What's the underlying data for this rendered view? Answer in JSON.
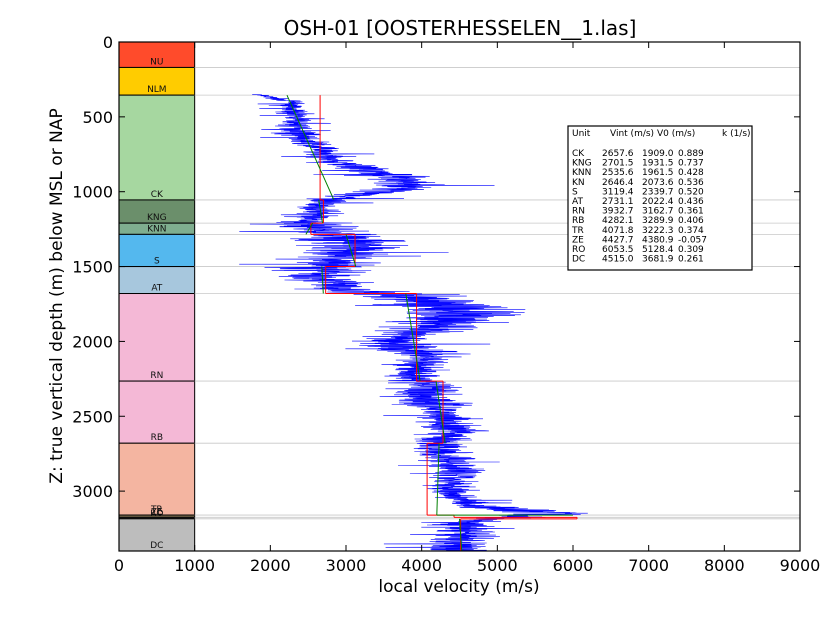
{
  "chart_data": {
    "type": "line",
    "title": "OSH-01 [OOSTERHESSELEN__1.las]",
    "xlabel": "local velocity (m/s)",
    "ylabel": "Z: true vertical depth (m) below MSL or NAP",
    "xlim": [
      0,
      9000
    ],
    "ylim": [
      3400,
      0
    ],
    "y_inverted": true,
    "xticks": [
      0,
      1000,
      2000,
      3000,
      4000,
      5000,
      6000,
      7000,
      8000,
      9000
    ],
    "yticks": [
      0,
      500,
      1000,
      1500,
      2000,
      2500,
      3000
    ],
    "units": [
      {
        "name": "NU",
        "top": 0,
        "base": 170,
        "color": "#ff4b2b"
      },
      {
        "name": "NLM",
        "top": 170,
        "base": 355,
        "color": "#ffcc00"
      },
      {
        "name": "CK",
        "top": 355,
        "base": 1055,
        "color": "#a6d7a0"
      },
      {
        "name": "KNG",
        "top": 1055,
        "base": 1210,
        "color": "#6b8f6b"
      },
      {
        "name": "KNN",
        "top": 1210,
        "base": 1285,
        "color": "#7fae8f"
      },
      {
        "name": "S",
        "top": 1285,
        "base": 1500,
        "color": "#54b8ee"
      },
      {
        "name": "AT",
        "top": 1500,
        "base": 1680,
        "color": "#a7c7dd"
      },
      {
        "name": "RN",
        "top": 1680,
        "base": 2265,
        "color": "#f4b8d6"
      },
      {
        "name": "RB",
        "top": 2265,
        "base": 2680,
        "color": "#f4b8d6"
      },
      {
        "name": "TR",
        "top": 2680,
        "base": 3160,
        "color": "#f4b5a1"
      },
      {
        "name": "ZE",
        "top": 3160,
        "base": 3175,
        "color": "#8a7a5a"
      },
      {
        "name": "RO",
        "top": 3175,
        "base": 3185,
        "color": "#444444"
      },
      {
        "name": "DC",
        "top": 3185,
        "base": 3400,
        "color": "#bdbdbd"
      }
    ],
    "log_trace": {
      "name": "local velocity",
      "color": "#0000ff",
      "depth": [
        350,
        400,
        450,
        500,
        550,
        600,
        650,
        700,
        750,
        800,
        850,
        900,
        950,
        1000,
        1050,
        1100,
        1150,
        1200,
        1250,
        1300,
        1350,
        1400,
        1450,
        1500,
        1550,
        1600,
        1650,
        1700,
        1750,
        1800,
        1850,
        1900,
        1950,
        2000,
        2050,
        2100,
        2150,
        2200,
        2250,
        2300,
        2350,
        2400,
        2450,
        2500,
        2550,
        2600,
        2650,
        2700,
        2750,
        2800,
        2850,
        2900,
        2950,
        3000,
        3050,
        3100,
        3150,
        3200,
        3250,
        3300,
        3350,
        3400
      ],
      "velocity": [
        1800,
        2300,
        2250,
        2350,
        2320,
        2400,
        2450,
        2600,
        2750,
        2900,
        3200,
        3600,
        3900,
        3600,
        2700,
        2650,
        2600,
        2500,
        2650,
        3000,
        3100,
        3050,
        2900,
        2800,
        2700,
        2800,
        2900,
        3800,
        4300,
        4500,
        4400,
        4100,
        3800,
        3600,
        3800,
        4100,
        4000,
        3900,
        3950,
        4050,
        4100,
        4150,
        4250,
        4300,
        4350,
        4400,
        4300,
        4200,
        4350,
        4400,
        4500,
        4450,
        4400,
        4350,
        4500,
        4700,
        5800,
        4600,
        4500,
        4550,
        4450,
        4500
      ],
      "spread": [
        150,
        150,
        180,
        200,
        250,
        250,
        250,
        300,
        300,
        350,
        500,
        500,
        500,
        500,
        400,
        300,
        300,
        500,
        600,
        700,
        800,
        700,
        600,
        700,
        800,
        500,
        500,
        700,
        900,
        900,
        800,
        700,
        600,
        500,
        600,
        500,
        400,
        350,
        400,
        500,
        500,
        600,
        500,
        400,
        400,
        400,
        400,
        400,
        500,
        450,
        400,
        400,
        350,
        350,
        300,
        400,
        700,
        400,
        450,
        450,
        450,
        450
      ]
    },
    "vint_segments": [
      {
        "unit": "CK",
        "top": 355,
        "base": 1055,
        "vint": 2657.6
      },
      {
        "unit": "KNG",
        "top": 1055,
        "base": 1210,
        "vint": 2701.5
      },
      {
        "unit": "KNN",
        "top": 1210,
        "base": 1285,
        "vint": 2535.6
      },
      {
        "unit": "S",
        "top": 1285,
        "base": 1500,
        "vint": 3119.4
      },
      {
        "unit": "AT",
        "top": 1500,
        "base": 1680,
        "vint": 2731.1
      },
      {
        "unit": "RN",
        "top": 1680,
        "base": 2265,
        "vint": 3932.7
      },
      {
        "unit": "RB",
        "top": 2265,
        "base": 2680,
        "vint": 4282.1
      },
      {
        "unit": "TR",
        "top": 2680,
        "base": 3160,
        "vint": 4071.8
      },
      {
        "unit": "ZE",
        "top": 3160,
        "base": 3175,
        "vint": 4427.7
      },
      {
        "unit": "RO",
        "top": 3175,
        "base": 3185,
        "vint": 6053.5
      },
      {
        "unit": "DC",
        "top": 3185,
        "base": 3400,
        "vint": 4515.0
      }
    ],
    "trend_segments": [
      {
        "unit": "CK",
        "points": [
          [
            355,
            2220
          ],
          [
            1055,
            2840
          ]
        ]
      },
      {
        "unit": "KNG",
        "points": [
          [
            1055,
            2640
          ],
          [
            1210,
            2690
          ]
        ]
      },
      {
        "unit": "KNN",
        "points": [
          [
            1210,
            2560
          ],
          [
            1285,
            2470
          ]
        ]
      },
      {
        "unit": "S",
        "points": [
          [
            1285,
            3000
          ],
          [
            1500,
            3130
          ]
        ]
      },
      {
        "unit": "AT",
        "points": [
          [
            1500,
            2680
          ],
          [
            1680,
            2700
          ]
        ]
      },
      {
        "unit": "RN",
        "points": [
          [
            1680,
            3790
          ],
          [
            2265,
            3980
          ]
        ]
      },
      {
        "unit": "RB",
        "points": [
          [
            2265,
            4190
          ],
          [
            2680,
            4310
          ]
        ]
      },
      {
        "unit": "TR",
        "points": [
          [
            2680,
            4230
          ],
          [
            3160,
            4200
          ]
        ]
      },
      {
        "unit": "DC",
        "points": [
          [
            3185,
            4500
          ],
          [
            3400,
            4530
          ]
        ]
      }
    ],
    "table": {
      "headers": [
        "Unit",
        "Vint (m/s)",
        "V0 (m/s)",
        "k (1/s)"
      ],
      "rows": [
        [
          "CK",
          "2657.6",
          "1909.0",
          "0.889"
        ],
        [
          "KNG",
          "2701.5",
          "1931.5",
          "0.737"
        ],
        [
          "KNN",
          "2535.6",
          "1961.5",
          "0.428"
        ],
        [
          "KN",
          "2646.4",
          "2073.6",
          "0.536"
        ],
        [
          "S",
          "3119.4",
          "2339.7",
          "0.520"
        ],
        [
          "AT",
          "2731.1",
          "2022.4",
          "0.436"
        ],
        [
          "RN",
          "3932.7",
          "3162.7",
          "0.361"
        ],
        [
          "RB",
          "4282.1",
          "3289.9",
          "0.406"
        ],
        [
          "TR",
          "4071.8",
          "3222.3",
          "0.374"
        ],
        [
          "ZE",
          "4427.7",
          "4380.9",
          "-0.057"
        ],
        [
          "RO",
          "6053.5",
          "5128.4",
          "0.309"
        ],
        [
          "DC",
          "4515.0",
          "3681.9",
          "0.261"
        ]
      ]
    },
    "colors": {
      "trace": "#0000ff",
      "vint": "#ff0000",
      "trend": "#008000",
      "boundary": "#c8c8c8"
    }
  }
}
